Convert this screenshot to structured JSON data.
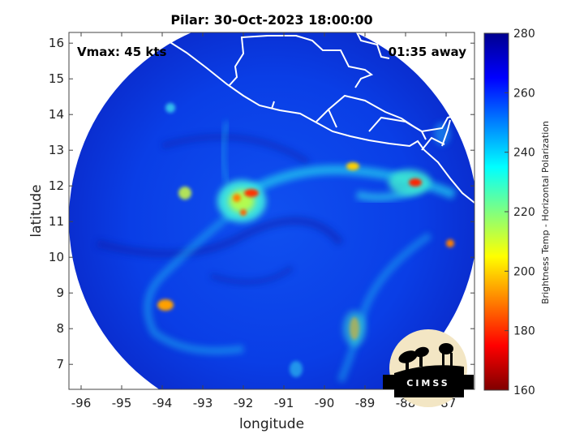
{
  "title": "Pilar: 30-Oct-2023 18:00:00",
  "annotations": {
    "vmax": "Vmax: 45 kts",
    "time_away": "01:35 away"
  },
  "axes": {
    "xlabel": "longitude",
    "ylabel": "latitude",
    "xlim": [
      -96.3,
      -86.3
    ],
    "ylim": [
      6.3,
      16.3
    ],
    "xticks": [
      "-96",
      "-95",
      "-94",
      "-93",
      "-92",
      "-91",
      "-90",
      "-89",
      "-88",
      "-87"
    ],
    "yticks": [
      "7",
      "8",
      "9",
      "10",
      "11",
      "12",
      "13",
      "14",
      "15",
      "16"
    ]
  },
  "colorbar": {
    "label": "Brightness Temp - Horizontal Polarization",
    "ticks": [
      "160",
      "180",
      "200",
      "220",
      "240",
      "260",
      "280"
    ],
    "range": [
      160,
      280
    ],
    "colors": [
      "#7f0000",
      "#ff0000",
      "#ff8000",
      "#ffff00",
      "#80ff80",
      "#00ffff",
      "#0080ff",
      "#0000ff",
      "#00008f"
    ]
  },
  "storm": {
    "center_lon": -92.0,
    "center_lat": 11.6
  },
  "logo": {
    "text": "CIMSS"
  }
}
